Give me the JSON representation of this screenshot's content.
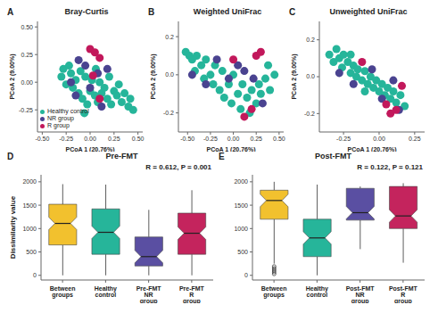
{
  "chart_data": [
    {
      "type": "scatter",
      "panel": "A",
      "title": "Bray-Curtis",
      "x_label": "PCoA 1 (20.76%)",
      "y_label": "PCoA 2 (9.00%)",
      "xlim": [
        -0.55,
        0.55
      ],
      "xticks": [
        {
          "value": -0.5,
          "label": "-0.50"
        },
        {
          "value": -0.25,
          "label": "-0.25"
        },
        {
          "value": 0,
          "label": "0.00"
        },
        {
          "value": 0.25,
          "label": "0.25"
        },
        {
          "value": 0.5,
          "label": "0.50"
        }
      ],
      "ylim": [
        -0.45,
        0.55
      ],
      "yticks": [
        {
          "value": -0.25,
          "label": "-0.25"
        },
        {
          "value": 0,
          "label": "0.00"
        },
        0.25,
        {
          "value": 0.5,
          "label": "0.50"
        }
      ],
      "legend": "bottom left",
      "series": [
        {
          "name": "Healthy control",
          "color": "#26b59a",
          "values": [
            [
              -0.3,
              0.05
            ],
            [
              -0.28,
              0.12
            ],
            [
              -0.25,
              -0.02
            ],
            [
              -0.22,
              0.15
            ],
            [
              -0.2,
              0.08
            ],
            [
              -0.18,
              -0.05
            ],
            [
              -0.15,
              0.02
            ],
            [
              -0.12,
              -0.1
            ],
            [
              -0.1,
              0.1
            ],
            [
              -0.08,
              -0.15
            ],
            [
              -0.05,
              0.05
            ],
            [
              -0.03,
              -0.2
            ],
            [
              0.0,
              -0.08
            ],
            [
              0.02,
              0.02
            ],
            [
              0.05,
              -0.12
            ],
            [
              0.08,
              -0.18
            ],
            [
              0.1,
              0.0
            ],
            [
              0.12,
              -0.1
            ],
            [
              0.15,
              -0.05
            ],
            [
              0.18,
              -0.15
            ],
            [
              0.2,
              0.05
            ],
            [
              0.22,
              -0.2
            ],
            [
              0.25,
              -0.08
            ],
            [
              0.28,
              -0.12
            ],
            [
              0.3,
              -0.02
            ],
            [
              0.33,
              -0.18
            ],
            [
              0.36,
              -0.1
            ],
            [
              0.4,
              -0.22
            ],
            [
              0.42,
              -0.15
            ],
            [
              0.45,
              -0.25
            ],
            [
              -0.06,
              -0.28
            ],
            [
              0.06,
              0.12
            ]
          ]
        },
        {
          "name": "NR group",
          "color": "#4a4390",
          "values": [
            [
              -0.12,
              0.2
            ],
            [
              -0.2,
              0.0
            ],
            [
              -0.05,
              0.15
            ],
            [
              0.0,
              -0.05
            ],
            [
              0.08,
              0.08
            ],
            [
              0.18,
              0.12
            ],
            [
              -0.15,
              -0.12
            ],
            [
              0.12,
              -0.22
            ]
          ]
        },
        {
          "name": "R group",
          "color": "#c2185b",
          "values": [
            [
              0.0,
              0.3
            ],
            [
              0.05,
              0.27
            ],
            [
              0.1,
              0.22
            ],
            [
              0.03,
              0.06
            ],
            [
              0.1,
              -0.15
            ]
          ]
        }
      ]
    },
    {
      "type": "scatter",
      "panel": "B",
      "title": "Weighted UniFrac",
      "x_label": "PCoA 1 (20.76%)",
      "y_label": "PCoA 2 (9.00%)",
      "xlim": [
        -0.6,
        0.55
      ],
      "xticks": [
        {
          "value": -0.5,
          "label": "-0.50"
        },
        {
          "value": -0.25,
          "label": "-0.25"
        },
        {
          "value": 0,
          "label": "0.00"
        },
        {
          "value": 0.25,
          "label": "0.25"
        },
        {
          "value": 0.5,
          "label": "0.50"
        }
      ],
      "ylim": [
        -0.3,
        0.28
      ],
      "yticks": [
        -0.2,
        {
          "value": 0,
          "label": "0.0"
        },
        0.2
      ],
      "series": [
        {
          "name": "Healthy control",
          "color": "#26b59a",
          "values": [
            [
              -0.52,
              0.12
            ],
            [
              -0.48,
              0.1
            ],
            [
              -0.45,
              0.08
            ],
            [
              -0.42,
              0.02
            ],
            [
              -0.4,
              0.1
            ],
            [
              -0.35,
              0.05
            ],
            [
              -0.32,
              -0.02
            ],
            [
              -0.3,
              0.08
            ],
            [
              -0.25,
              0.0
            ],
            [
              -0.22,
              -0.05
            ],
            [
              -0.2,
              0.05
            ],
            [
              -0.15,
              -0.08
            ],
            [
              -0.12,
              0.02
            ],
            [
              -0.1,
              -0.12
            ],
            [
              -0.05,
              -0.05
            ],
            [
              -0.02,
              -0.15
            ],
            [
              0.0,
              0.0
            ],
            [
              0.05,
              -0.1
            ],
            [
              0.08,
              -0.18
            ],
            [
              0.1,
              -0.05
            ],
            [
              0.15,
              -0.12
            ],
            [
              0.18,
              -0.2
            ],
            [
              0.2,
              -0.08
            ],
            [
              0.25,
              -0.15
            ],
            [
              0.28,
              -0.05
            ],
            [
              0.3,
              -0.1
            ],
            [
              0.35,
              -0.02
            ],
            [
              0.38,
              0.05
            ],
            [
              0.4,
              -0.08
            ],
            [
              0.45,
              0.0
            ]
          ]
        },
        {
          "name": "NR group",
          "color": "#4a4390",
          "values": [
            [
              -0.45,
              0.0
            ],
            [
              -0.3,
              -0.05
            ],
            [
              -0.18,
              0.08
            ],
            [
              -0.05,
              -0.02
            ],
            [
              0.05,
              0.05
            ],
            [
              0.12,
              0.02
            ],
            [
              0.22,
              -0.02
            ],
            [
              0.32,
              -0.15
            ]
          ]
        },
        {
          "name": "R group",
          "color": "#c2185b",
          "values": [
            [
              0.0,
              0.08
            ],
            [
              0.12,
              -0.22
            ],
            [
              0.2,
              -0.18
            ],
            [
              0.25,
              0.1
            ],
            [
              0.3,
              0.12
            ]
          ]
        }
      ]
    },
    {
      "type": "scatter",
      "panel": "C",
      "title": "Unweighted UniFrac",
      "x_label": "PCoA 1 (20.76%)",
      "y_label": "PCoA 2 (9.00%)",
      "xlim": [
        -0.42,
        0.32
      ],
      "xticks": [
        {
          "value": -0.25,
          "label": "-0.25"
        },
        {
          "value": 0,
          "label": "0.00"
        },
        {
          "value": 0.25,
          "label": "0.25"
        }
      ],
      "ylim": [
        -0.3,
        0.3
      ],
      "yticks": [
        -0.2,
        {
          "value": 0,
          "label": "0.0"
        },
        0.2
      ],
      "series": [
        {
          "name": "Healthy control",
          "color": "#26b59a",
          "values": [
            [
              -0.35,
              0.12
            ],
            [
              -0.32,
              0.08
            ],
            [
              -0.3,
              0.15
            ],
            [
              -0.28,
              0.1
            ],
            [
              -0.26,
              0.05
            ],
            [
              -0.25,
              0.12
            ],
            [
              -0.22,
              0.08
            ],
            [
              -0.2,
              0.02
            ],
            [
              -0.18,
              0.06
            ],
            [
              -0.16,
              0.0
            ],
            [
              -0.15,
              0.04
            ],
            [
              -0.12,
              -0.02
            ],
            [
              -0.1,
              0.03
            ],
            [
              -0.08,
              -0.04
            ],
            [
              -0.06,
              0.0
            ],
            [
              -0.04,
              -0.06
            ],
            [
              -0.02,
              -0.02
            ],
            [
              0.0,
              -0.08
            ],
            [
              0.02,
              -0.04
            ],
            [
              0.04,
              -0.1
            ],
            [
              0.06,
              -0.06
            ],
            [
              0.08,
              -0.12
            ],
            [
              0.1,
              -0.08
            ],
            [
              0.12,
              -0.14
            ],
            [
              0.15,
              -0.1
            ],
            [
              0.18,
              -0.16
            ],
            [
              -0.2,
              0.12
            ],
            [
              -0.1,
              -0.08
            ]
          ]
        },
        {
          "name": "NR group",
          "color": "#4a4390",
          "values": [
            [
              -0.28,
              0.02
            ],
            [
              -0.18,
              -0.04
            ],
            [
              -0.05,
              0.04
            ],
            [
              0.02,
              -0.12
            ],
            [
              0.1,
              -0.02
            ],
            [
              0.14,
              -0.18
            ]
          ]
        },
        {
          "name": "R group",
          "color": "#c2185b",
          "values": [
            [
              0.05,
              -0.15
            ],
            [
              0.08,
              -0.2
            ],
            [
              0.12,
              -0.18
            ],
            [
              0.16,
              -0.05
            ],
            [
              -0.12,
              0.08
            ]
          ]
        }
      ]
    },
    {
      "type": "box",
      "panel": "D",
      "title": "Pre-FMT",
      "annotation": "R = 0.612, P = 0.001",
      "y_label": "Dissimilarity value",
      "categories": [
        "Between groups",
        "Healthy control",
        "Pre-FMT NR group",
        "Pre-FMT R group"
      ],
      "colors": [
        "#f2c12e",
        "#26b59a",
        "#5a4fa2",
        "#c4245d"
      ],
      "min": [
        0,
        0,
        0,
        0
      ],
      "q1": [
        650,
        450,
        200,
        450
      ],
      "median": [
        1110,
        920,
        400,
        900
      ],
      "q3": [
        1520,
        1420,
        820,
        1330
      ],
      "max": [
        1950,
        1940,
        1400,
        1820
      ],
      "outliers": [
        [],
        [],
        [],
        []
      ],
      "ylim": [
        -100,
        2150
      ],
      "yticks": [
        0,
        500,
        1000,
        1500,
        2000
      ]
    },
    {
      "type": "box",
      "panel": "E",
      "title": "Post-FMT",
      "annotation": "R = 0.122, P = 0.121",
      "categories": [
        "Between groups",
        "Healthy control",
        "Post-FMT NR group",
        "Post-FMT R group"
      ],
      "colors": [
        "#f2c12e",
        "#26b59a",
        "#5a4fa2",
        "#c4245d"
      ],
      "min": [
        250,
        0,
        560,
        270
      ],
      "q1": [
        1200,
        400,
        1180,
        1000
      ],
      "median": [
        1600,
        800,
        1340,
        1270
      ],
      "q3": [
        1820,
        1200,
        1860,
        1900
      ],
      "max": [
        2000,
        1940,
        1900,
        1970
      ],
      "outliers": [
        [
          30,
          70,
          110,
          150,
          190
        ],
        [],
        [],
        []
      ],
      "ylim": [
        -100,
        2150
      ],
      "yticks": [
        0,
        500,
        1000,
        1500,
        2000
      ]
    }
  ]
}
